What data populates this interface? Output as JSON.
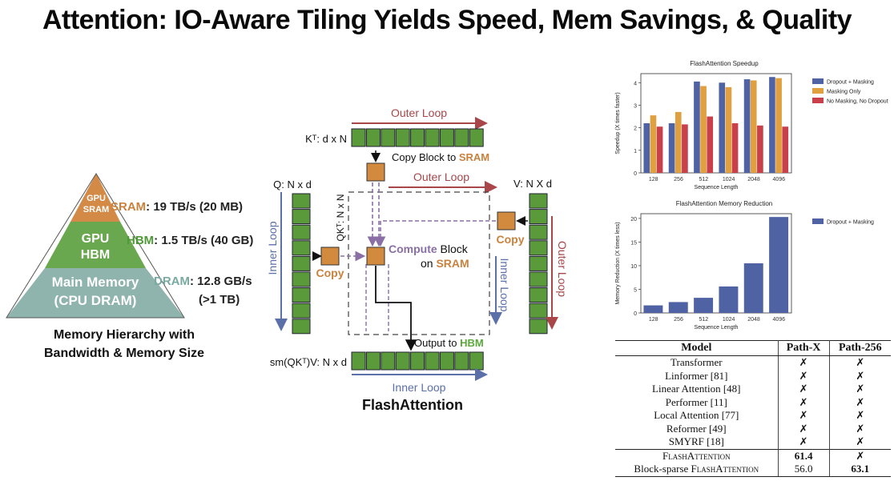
{
  "title": "Attention: IO-Aware Tiling Yields Speed, Mem Savings, & Quality",
  "hierarchy": {
    "levels": [
      {
        "name": "GPU SRAM",
        "line1": "GPU",
        "line2": "SRAM",
        "color": "#d38a47"
      },
      {
        "name": "GPU HBM",
        "line1": "GPU",
        "line2": "HBM",
        "color": "#6aa84f"
      },
      {
        "name": "Main Memory (CPU DRAM)",
        "line1": "Main Memory",
        "line2": "(CPU DRAM)",
        "color": "#8fb3ad"
      }
    ],
    "labels": [
      {
        "key": "SRAM",
        "rest": ": 19 TB/s (20 MB)",
        "color": "#c9823e"
      },
      {
        "key": "HBM",
        "rest": ": 1.5 TB/s (40 GB)",
        "color": "#4e9a36"
      },
      {
        "key": "DRAM",
        "rest": ": 12.8 GB/s",
        "extra": "(>1 TB)",
        "color": "#7aa9a2"
      }
    ],
    "caption_line1": "Memory Hierarchy with",
    "caption_line2": "Bandwidth & Memory Size"
  },
  "flash": {
    "outer_loop_top": "Outer Loop",
    "outer_loop_mid": "Outer Loop",
    "outer_loop_right": "Outer Loop",
    "inner_loop_left": "Inner Loop",
    "inner_loop_right": "Inner Loop",
    "inner_loop_bottom": "Inner Loop",
    "kt_label": "Kᵀ: d x N",
    "q_label": "Q: N x d",
    "v_label": "V: N X d",
    "qk_label": "QKᵀ: N x N",
    "out_label": "sm(QKᵀ)V: N x d",
    "copy_block_prefix": "Copy Block to ",
    "copy_block_sram": "SRAM",
    "copy_left": "Copy",
    "copy_right": "Copy",
    "compute_word": "Compute",
    "compute_rest": " Block",
    "compute_on": "on ",
    "compute_sram": "SRAM",
    "output_prefix": "Output to ",
    "output_hbm": "HBM",
    "caption": "FlashAttention",
    "colors": {
      "green": "#5a9a3a",
      "orange": "#d18a3e",
      "outer": "#a8464a",
      "inner": "#5b6fa8",
      "sram": "#c9823e",
      "hbm": "#5aa83c"
    }
  },
  "speedup_chart": {
    "type": "bar",
    "title": "FlashAttention Speedup",
    "xlabel": "Sequence Length",
    "ylabel": "Speedup (X times faster)",
    "categories": [
      "128",
      "256",
      "512",
      "1024",
      "2048",
      "4096"
    ],
    "ylim": [
      0,
      4.4
    ],
    "yticks": [
      "0",
      "1",
      "2",
      "3",
      "4"
    ],
    "legend": "top-right",
    "series": [
      {
        "name": "Dropout + Masking",
        "color": "#4f62a3",
        "values": [
          2.2,
          2.2,
          4.05,
          4.0,
          4.15,
          4.25
        ]
      },
      {
        "name": "Masking Only",
        "color": "#e0a040",
        "values": [
          2.55,
          2.7,
          3.85,
          3.8,
          4.1,
          4.2
        ]
      },
      {
        "name": "No Masking, No Dropout",
        "color": "#c9404a",
        "values": [
          2.05,
          2.15,
          2.5,
          2.2,
          2.1,
          2.05
        ]
      }
    ]
  },
  "memory_chart": {
    "type": "bar",
    "title": "FlashAttention Memory Reduction",
    "xlabel": "Sequence Length",
    "ylabel": "Memory Reduction (X times less)",
    "categories": [
      "128",
      "256",
      "512",
      "1024",
      "2048",
      "4096"
    ],
    "ylim": [
      0,
      21
    ],
    "yticks": [
      "0",
      "5",
      "10",
      "15",
      "20"
    ],
    "legend": "top-right",
    "series": [
      {
        "name": "Dropout + Masking",
        "color": "#4f62a3",
        "values": [
          1.6,
          2.3,
          3.2,
          5.6,
          10.5,
          20.3
        ]
      }
    ]
  },
  "table": {
    "headers": [
      "Model",
      "Path-X",
      "Path-256"
    ],
    "rows": [
      {
        "model": "Transformer",
        "pathx": "✗",
        "path256": "✗"
      },
      {
        "model": "Linformer [81]",
        "pathx": "✗",
        "path256": "✗"
      },
      {
        "model": "Linear Attention [48]",
        "pathx": "✗",
        "path256": "✗"
      },
      {
        "model": "Performer [11]",
        "pathx": "✗",
        "path256": "✗"
      },
      {
        "model": "Local Attention [77]",
        "pathx": "✗",
        "path256": "✗"
      },
      {
        "model": "Reformer [49]",
        "pathx": "✗",
        "path256": "✗"
      },
      {
        "model": "SMYRF [18]",
        "pathx": "✗",
        "path256": "✗"
      }
    ],
    "flash_row": {
      "model": "FlashAttention",
      "pathx": "61.4",
      "path256": "✗"
    },
    "sparse_row": {
      "model_prefix": "Block-sparse ",
      "model_sc": "FlashAttention",
      "pathx": "56.0",
      "path256": "63.1"
    }
  }
}
